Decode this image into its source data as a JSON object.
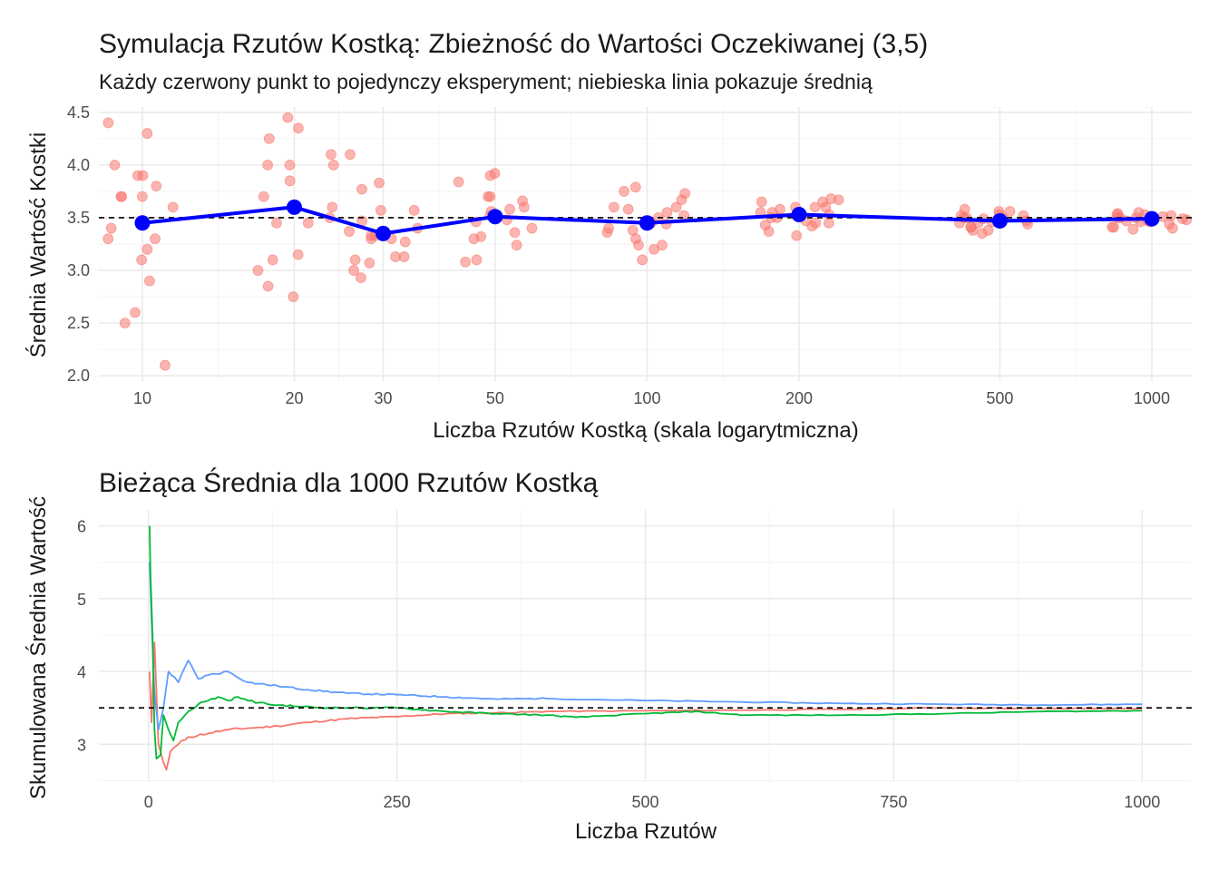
{
  "colors": {
    "points": "#F8766D",
    "mean_line": "#0000FF",
    "series_red": "#F8766D",
    "series_blue": "#619CFF",
    "series_green": "#00BA38",
    "reference": "#000000"
  },
  "chart_data": [
    {
      "type": "scatter",
      "title": "Symulacja Rzutów Kostką: Zbieżność do Wartości Oczekiwanej (3,5)",
      "subtitle": "Każdy czerwony punkt to pojedynczy eksperyment; niebieska linia pokazuje średnią",
      "xlabel": "Liczba Rzutów Kostką (skala logarytmiczna)",
      "ylabel": "Średnia Wartość Kostki",
      "x_scale": "log10",
      "xlim": [
        8.2,
        1200
      ],
      "ylim": [
        2.0,
        4.5
      ],
      "x_ticks": [
        10,
        20,
        30,
        50,
        100,
        200,
        500,
        1000
      ],
      "x_tick_labels": [
        "10",
        "20",
        "30",
        "50",
        "100",
        "200",
        "500",
        "1000"
      ],
      "y_ticks": [
        2.0,
        2.5,
        3.0,
        3.5,
        4.0,
        4.5
      ],
      "y_tick_labels": [
        "2.0",
        "2.5",
        "3.0",
        "3.5",
        "4.0",
        "4.5"
      ],
      "reference_line": 3.5,
      "grid": true,
      "experiments": [
        {
          "n": 10,
          "values": [
            3.1,
            3.2,
            3.4,
            3.7,
            3.9,
            3.9,
            4.4,
            3.6,
            2.9,
            2.6,
            2.5,
            2.1,
            3.3,
            3.3,
            3.7,
            3.7,
            3.8,
            4.0,
            4.3
          ]
        },
        {
          "n": 20,
          "values": [
            2.75,
            2.85,
            3.0,
            3.5,
            3.6,
            3.7,
            4.0,
            4.1,
            4.25,
            4.45,
            4.35,
            3.45,
            3.45,
            4.0,
            4.0,
            3.85,
            3.1,
            3.15
          ]
        },
        {
          "n": 30,
          "values": [
            3.07,
            3.1,
            3.27,
            3.3,
            3.33,
            3.37,
            3.4,
            3.47,
            3.57,
            3.57,
            3.77,
            3.3,
            3.33,
            3.13,
            3.13,
            3.0,
            2.93,
            3.83,
            4.1
          ]
        },
        {
          "n": 50,
          "values": [
            3.84,
            3.7,
            3.58,
            3.48,
            3.4,
            3.32,
            3.52,
            3.92,
            3.7,
            3.66,
            3.56,
            3.9,
            3.46,
            3.3,
            3.36,
            3.08,
            3.1,
            3.24,
            3.6
          ]
        },
        {
          "n": 100,
          "values": [
            3.73,
            3.67,
            3.6,
            3.55,
            3.5,
            3.45,
            3.4,
            3.38,
            3.79,
            3.75,
            3.24,
            3.24,
            3.44,
            3.58,
            3.52,
            3.36,
            3.3,
            3.2,
            3.1,
            3.6
          ]
        },
        {
          "n": 200,
          "values": [
            3.67,
            3.6,
            3.53,
            3.47,
            3.33,
            3.37,
            3.65,
            3.68,
            3.58,
            3.55,
            3.5,
            3.45,
            3.6,
            3.42,
            3.45,
            3.5,
            3.6,
            3.55,
            3.65,
            3.43
          ]
        },
        {
          "n": 500,
          "values": [
            3.52,
            3.5,
            3.47,
            3.44,
            3.41,
            3.53,
            3.5,
            3.35,
            3.56,
            3.58,
            3.38,
            3.45,
            3.49,
            3.52,
            3.41,
            3.38,
            3.45,
            3.56,
            3.5,
            3.46
          ]
        },
        {
          "n": 1000,
          "values": [
            3.5,
            3.46,
            3.53,
            3.41,
            3.4,
            3.47,
            3.52,
            3.55,
            3.48,
            3.44,
            3.51,
            3.39,
            3.46,
            3.54,
            3.49,
            3.5,
            3.53,
            3.47,
            3.5,
            3.41
          ]
        }
      ],
      "means": {
        "x": [
          10,
          20,
          30,
          50,
          100,
          200,
          500,
          1000
        ],
        "y": [
          3.45,
          3.6,
          3.35,
          3.51,
          3.45,
          3.53,
          3.47,
          3.49
        ]
      }
    },
    {
      "type": "line",
      "title": "Bieżąca Średnia dla 1000 Rzutów Kostką",
      "xlabel": "Liczba Rzutów",
      "ylabel": "Skumulowana Średnia Wartość",
      "xlim": [
        -50,
        1050
      ],
      "ylim": [
        2.5,
        6.0
      ],
      "x_ticks": [
        0,
        250,
        500,
        750,
        1000
      ],
      "x_tick_labels": [
        "0",
        "250",
        "500",
        "750",
        "1000"
      ],
      "y_ticks": [
        3,
        4,
        5,
        6
      ],
      "y_tick_labels": [
        "3",
        "4",
        "5",
        "6"
      ],
      "reference_line": 3.5,
      "grid": true,
      "series": [
        {
          "color": "#F8766D",
          "x": [
            1,
            3,
            6,
            10,
            15,
            18,
            22,
            30,
            40,
            60,
            80,
            100,
            130,
            160,
            200,
            250,
            300,
            350,
            400,
            500,
            600,
            700,
            800,
            900,
            1000
          ],
          "y": [
            4.0,
            3.3,
            4.4,
            3.0,
            2.75,
            2.65,
            2.9,
            3.0,
            3.1,
            3.15,
            3.2,
            3.22,
            3.25,
            3.3,
            3.35,
            3.38,
            3.42,
            3.43,
            3.45,
            3.46,
            3.47,
            3.48,
            3.5,
            3.49,
            3.49
          ]
        },
        {
          "color": "#619CFF",
          "x": [
            1,
            3,
            6,
            10,
            15,
            20,
            30,
            40,
            50,
            60,
            80,
            100,
            130,
            160,
            200,
            250,
            300,
            350,
            400,
            500,
            600,
            700,
            800,
            900,
            1000
          ],
          "y": [
            5.5,
            4.7,
            3.7,
            3.2,
            3.5,
            4.0,
            3.85,
            4.15,
            3.9,
            3.95,
            4.0,
            3.85,
            3.8,
            3.75,
            3.7,
            3.68,
            3.65,
            3.62,
            3.63,
            3.6,
            3.58,
            3.56,
            3.55,
            3.54,
            3.55
          ]
        },
        {
          "color": "#00BA38",
          "x": [
            1,
            2,
            4,
            6,
            8,
            12,
            15,
            20,
            25,
            30,
            40,
            50,
            60,
            70,
            80,
            90,
            100,
            120,
            150,
            180,
            200,
            250,
            300,
            350,
            400,
            430,
            500,
            550,
            600,
            700,
            800,
            900,
            1000
          ],
          "y": [
            6.0,
            5.3,
            4.5,
            3.2,
            2.8,
            2.85,
            3.4,
            3.2,
            3.05,
            3.3,
            3.45,
            3.55,
            3.6,
            3.65,
            3.6,
            3.65,
            3.6,
            3.55,
            3.52,
            3.5,
            3.5,
            3.5,
            3.45,
            3.42,
            3.4,
            3.37,
            3.42,
            3.45,
            3.4,
            3.4,
            3.42,
            3.45,
            3.46
          ]
        }
      ]
    }
  ]
}
